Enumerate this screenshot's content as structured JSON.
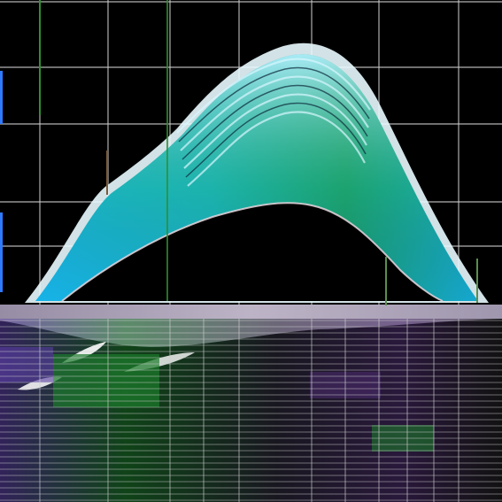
{
  "scene": {
    "palette": {
      "background": "#000000",
      "grid_line": "#c9c9c9",
      "wave_outer_edge": "#dff6ff",
      "wave_cyan": "#1ab7e8",
      "wave_teal": "#1fc6b5",
      "wave_green": "#1f9a57",
      "wave_inner_edge": "#b8f1ff",
      "base_band": "#b9adc6",
      "reflection_purple": "#5a3fa3",
      "reflection_green": "#1c7a2c",
      "accent_blue": "#2e7bff",
      "accent_green": "#2f8f2f"
    },
    "motifs": [
      "grid-backdrop",
      "gradient-hill-wave",
      "mirrored-striped-reflection"
    ]
  }
}
